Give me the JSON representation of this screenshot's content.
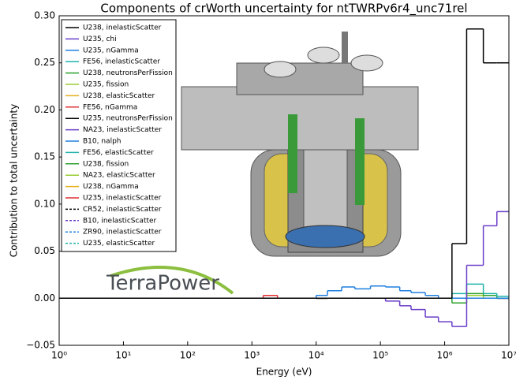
{
  "chart_data": {
    "type": "line",
    "step": true,
    "title": "Components of crWorth uncertainty for ntTWRPv6r4_unc71rel",
    "xlabel": "Energy (eV)",
    "ylabel": "Contribution to total uncertainty",
    "logo": "TerraPower",
    "xscale": "log",
    "xlim": [
      1,
      10000000
    ],
    "ylim": [
      -0.05,
      0.3
    ],
    "xticks": [
      {
        "value": 1,
        "label": "10⁰"
      },
      {
        "value": 10,
        "label": "10¹"
      },
      {
        "value": 100,
        "label": "10²"
      },
      {
        "value": 1000,
        "label": "10³"
      },
      {
        "value": 10000,
        "label": "10⁴"
      },
      {
        "value": 100000,
        "label": "10⁵"
      },
      {
        "value": 1000000,
        "label": "10⁶"
      },
      {
        "value": 10000000,
        "label": "10⁷"
      }
    ],
    "yticks": [
      {
        "value": -0.05,
        "label": "−0.05"
      },
      {
        "value": 0,
        "label": "0.00"
      },
      {
        "value": 0.05,
        "label": "0.05"
      },
      {
        "value": 0.1,
        "label": "0.10"
      },
      {
        "value": 0.15,
        "label": "0.15"
      },
      {
        "value": 0.2,
        "label": "0.20"
      },
      {
        "value": 0.25,
        "label": "0.25"
      },
      {
        "value": 0.3,
        "label": "0.30"
      }
    ],
    "legend": "upper left",
    "x": [
      1,
      1500,
      2500,
      10000,
      15000,
      25000,
      40000,
      70000,
      120000,
      200000,
      300000,
      500000,
      800000,
      1300000,
      2200000,
      4000000,
      6500000
    ],
    "series": [
      {
        "name": "U238, inelasticScatter",
        "color": "#000000",
        "style": "solid",
        "values": [
          0,
          0,
          0,
          0,
          0,
          0,
          0,
          0,
          0,
          0,
          0,
          0,
          0,
          0.058,
          0.286,
          0.25,
          0.25
        ]
      },
      {
        "name": "U235, chi",
        "color": "#6a3dc9",
        "style": "solid",
        "values": [
          0,
          0,
          0,
          0,
          0,
          0,
          0,
          0,
          -0.003,
          -0.008,
          -0.012,
          -0.02,
          -0.025,
          -0.03,
          0.035,
          0.077,
          0.092
        ]
      },
      {
        "name": "U235, nGamma",
        "color": "#1f7fe0",
        "style": "solid",
        "values": [
          0,
          0,
          0,
          0.003,
          0.008,
          0.012,
          0.01,
          0.013,
          0.012,
          0.008,
          0.006,
          0.003,
          0,
          0,
          0,
          0,
          0
        ]
      },
      {
        "name": "FE56, inelasticScatter",
        "color": "#20b2aa",
        "style": "solid",
        "values": [
          0,
          0,
          0,
          0,
          0,
          0,
          0,
          0,
          0,
          0,
          0,
          0,
          0,
          0.005,
          0.015,
          0.005,
          0.002
        ]
      },
      {
        "name": "U238, neutronsPerFission",
        "color": "#2ca02c",
        "style": "solid",
        "values": [
          0,
          0,
          0,
          0,
          0,
          0,
          0,
          0,
          0,
          0,
          0,
          0,
          0,
          -0.005,
          0.005,
          0.003,
          0
        ]
      },
      {
        "name": "U235, fission",
        "color": "#9acd32",
        "style": "solid",
        "values": [
          0,
          0,
          0,
          0,
          0,
          0,
          0,
          0,
          0,
          0,
          0,
          0,
          0,
          0,
          0.003,
          0,
          0
        ]
      },
      {
        "name": "U238, elasticScatter",
        "color": "#e8b020",
        "style": "solid",
        "values": [
          0,
          0,
          0,
          0,
          0,
          0,
          0,
          0,
          0,
          0,
          0,
          0,
          0,
          0,
          0,
          0,
          0
        ]
      },
      {
        "name": "FE56, nGamma",
        "color": "#e03030",
        "style": "solid",
        "values": [
          0,
          0.003,
          0,
          0,
          0,
          0,
          0,
          0,
          0,
          0,
          0,
          0,
          0,
          0,
          0,
          0,
          0
        ]
      },
      {
        "name": "U235, neutronsPerFission",
        "color": "#000000",
        "style": "solid",
        "values": [
          0,
          0,
          0,
          0,
          0,
          0,
          0,
          0,
          0,
          0,
          0,
          0,
          0,
          0,
          0,
          0,
          0
        ]
      },
      {
        "name": "NA23, inelasticScatter",
        "color": "#6a3dc9",
        "style": "solid",
        "values": [
          0,
          0,
          0,
          0,
          0,
          0,
          0,
          0,
          0,
          0,
          0,
          0,
          0,
          0,
          0,
          0,
          0
        ]
      },
      {
        "name": "B10, nalph",
        "color": "#1f7fe0",
        "style": "solid",
        "values": [
          0,
          0,
          0,
          0,
          0,
          0,
          0,
          0,
          0,
          0,
          0,
          0,
          0,
          0,
          0,
          0,
          0
        ]
      },
      {
        "name": "FE56, elasticScatter",
        "color": "#20b2aa",
        "style": "solid",
        "values": [
          0,
          0,
          0,
          0,
          0,
          0,
          0,
          0,
          0,
          0,
          0,
          0,
          0,
          0,
          0,
          0,
          0
        ]
      },
      {
        "name": "U238, fission",
        "color": "#2ca02c",
        "style": "solid",
        "values": [
          0,
          0,
          0,
          0,
          0,
          0,
          0,
          0,
          0,
          0,
          0,
          0,
          0,
          0,
          0,
          0,
          0
        ]
      },
      {
        "name": "NA23, elasticScatter",
        "color": "#9acd32",
        "style": "solid",
        "values": [
          0,
          0,
          0,
          0,
          0,
          0,
          0,
          0,
          0,
          0,
          0,
          0,
          0,
          0,
          0,
          0,
          0
        ]
      },
      {
        "name": "U238, nGamma",
        "color": "#e8b020",
        "style": "solid",
        "values": [
          0,
          0,
          0,
          0,
          0,
          0,
          0,
          0,
          0,
          0,
          0,
          0,
          0,
          0,
          0,
          0,
          0
        ]
      },
      {
        "name": "U235, inelasticScatter",
        "color": "#e03030",
        "style": "solid",
        "values": [
          0,
          0,
          0,
          0,
          0,
          0,
          0,
          0,
          0,
          0,
          0,
          0,
          0,
          0,
          0,
          0,
          0
        ]
      },
      {
        "name": "CR52, inelasticScatter",
        "color": "#000000",
        "style": "dashed",
        "values": [
          0,
          0,
          0,
          0,
          0,
          0,
          0,
          0,
          0,
          0,
          0,
          0,
          0,
          0,
          0,
          0,
          0
        ]
      },
      {
        "name": "B10, inelasticScatter",
        "color": "#6a3dc9",
        "style": "dashed",
        "values": [
          0,
          0,
          0,
          0,
          0,
          0,
          0,
          0,
          0,
          0,
          0,
          0,
          0,
          0,
          0,
          0,
          0
        ]
      },
      {
        "name": "ZR90, inelasticScatter",
        "color": "#1f7fe0",
        "style": "dashed",
        "values": [
          0,
          0,
          0,
          0,
          0,
          0,
          0,
          0,
          0,
          0,
          0,
          0,
          0,
          0,
          0,
          0,
          0
        ]
      },
      {
        "name": "U235, elasticScatter",
        "color": "#20b2aa",
        "style": "dashed",
        "values": [
          0,
          0,
          0,
          0,
          0,
          0,
          0,
          0,
          0,
          0,
          0,
          0,
          0,
          0,
          0,
          0,
          0
        ]
      }
    ]
  }
}
